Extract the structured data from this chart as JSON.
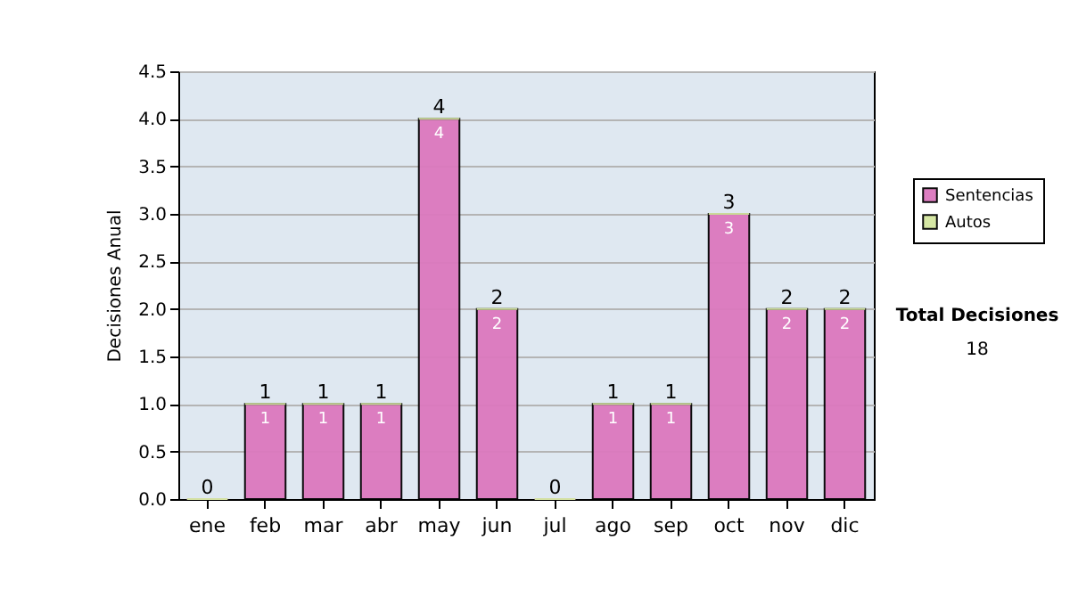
{
  "chart_data": {
    "type": "bar",
    "stacked": true,
    "ylabel": "Decisiones Anual",
    "categories": [
      "ene",
      "feb",
      "mar",
      "abr",
      "may",
      "jun",
      "jul",
      "ago",
      "sep",
      "oct",
      "nov",
      "dic"
    ],
    "series": [
      {
        "name": "Sentencias",
        "color": "#dc78be",
        "values": [
          0,
          1,
          1,
          1,
          4,
          2,
          0,
          1,
          1,
          3,
          2,
          2
        ],
        "value_labels": [
          null,
          "1",
          "1",
          "1",
          "4",
          "2",
          null,
          "1",
          "1",
          "3",
          "2",
          "2"
        ]
      },
      {
        "name": "Autos",
        "color": "#d4e6a0",
        "values": [
          0,
          0,
          0,
          0,
          0,
          0,
          0,
          0,
          0,
          0,
          0,
          0
        ]
      }
    ],
    "totals": [
      "0",
      "1",
      "1",
      "1",
      "4",
      "2",
      "0",
      "1",
      "1",
      "3",
      "2",
      "2"
    ],
    "ylim": [
      0,
      4.5
    ],
    "yticks": [
      {
        "value": 0,
        "label": "0.0"
      },
      {
        "value": 0.5,
        "label": "0.5"
      },
      {
        "value": 1,
        "label": "1.0"
      },
      {
        "value": 1.5,
        "label": "1.5"
      },
      {
        "value": 2,
        "label": "2.0"
      },
      {
        "value": 2.5,
        "label": "2.5"
      },
      {
        "value": 3,
        "label": "3.0"
      },
      {
        "value": 3.5,
        "label": "3.5"
      },
      {
        "value": 4,
        "label": "4.0"
      },
      {
        "value": 4.5,
        "label": "4.5"
      }
    ],
    "grid": "y",
    "legend": "right",
    "annotations": [
      "Total Decisiones",
      "18"
    ]
  }
}
